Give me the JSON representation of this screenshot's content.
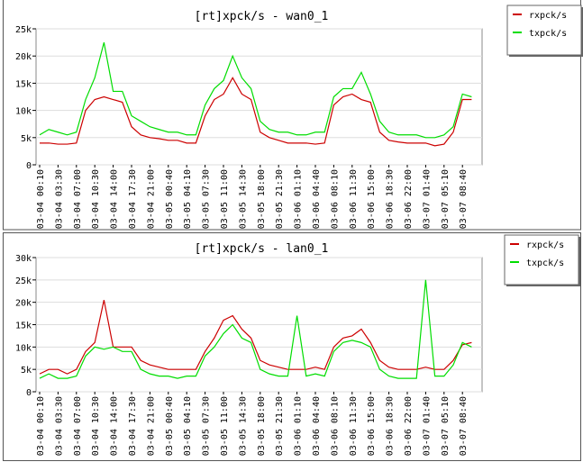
{
  "chart_data": [
    {
      "type": "line",
      "title": "[rt]xpck/s - wan0_1",
      "categories": [
        "03-04 00:10",
        null,
        "03-04 03:30",
        null,
        "03-04 07:00",
        null,
        "03-04 10:30",
        null,
        "03-04 14:00",
        null,
        "03-04 17:30",
        null,
        "03-04 21:00",
        null,
        "03-05 00:40",
        null,
        "03-05 04:10",
        null,
        "03-05 07:30",
        null,
        "03-05 11:00",
        null,
        "03-05 14:30",
        null,
        "03-05 18:00",
        null,
        "03-05 21:30",
        null,
        "03-06 01:10",
        null,
        "03-06 04:40",
        null,
        "03-06 08:10",
        null,
        "03-06 11:30",
        null,
        "03-06 15:00",
        null,
        "03-06 18:30",
        null,
        "03-06 22:00",
        null,
        "03-07 01:40",
        null,
        "03-07 05:10",
        null,
        "03-07 08:40",
        null
      ],
      "series": [
        {
          "name": "rxpck/s",
          "color": "#cc0000",
          "values": [
            4000,
            4000,
            3800,
            3800,
            4000,
            10000,
            12000,
            12500,
            12000,
            11500,
            7000,
            5500,
            5000,
            4800,
            4500,
            4500,
            4000,
            4000,
            9000,
            12000,
            13000,
            16000,
            13000,
            12000,
            6000,
            5000,
            4500,
            4000,
            4000,
            4000,
            3800,
            4000,
            11000,
            12500,
            13000,
            12000,
            11500,
            6000,
            4500,
            4200,
            4000,
            4000,
            4000,
            3500,
            3800,
            6000,
            12000,
            12000
          ]
        },
        {
          "name": "txpck/s",
          "color": "#00dd00",
          "values": [
            5500,
            6500,
            6000,
            5500,
            6000,
            12000,
            16000,
            22500,
            13500,
            13500,
            9000,
            8000,
            7000,
            6500,
            6000,
            6000,
            5500,
            5500,
            11000,
            14000,
            15500,
            20000,
            16000,
            14000,
            8000,
            6500,
            6000,
            6000,
            5500,
            5500,
            6000,
            6000,
            12500,
            14000,
            14000,
            17000,
            13000,
            8000,
            6000,
            5500,
            5500,
            5500,
            5000,
            5000,
            5500,
            7000,
            13000,
            12500
          ]
        }
      ],
      "ylim": [
        0,
        25000
      ],
      "yticks": [
        0,
        {
          "value": 5000,
          "label": "5k"
        },
        {
          "value": 10000,
          "label": "10k"
        },
        {
          "value": 15000,
          "label": "15k"
        },
        {
          "value": 20000,
          "label": "20k"
        },
        {
          "value": 25000,
          "label": "25k"
        }
      ],
      "grid": true,
      "legend": "upper right"
    },
    {
      "type": "line",
      "title": "[rt]xpck/s - lan0_1",
      "categories": [
        "03-04 00:10",
        null,
        "03-04 03:30",
        null,
        "03-04 07:00",
        null,
        "03-04 10:30",
        null,
        "03-04 14:00",
        null,
        "03-04 17:30",
        null,
        "03-04 21:00",
        null,
        "03-05 00:40",
        null,
        "03-05 04:10",
        null,
        "03-05 07:30",
        null,
        "03-05 11:00",
        null,
        "03-05 14:30",
        null,
        "03-05 18:00",
        null,
        "03-05 21:30",
        null,
        "03-06 01:10",
        null,
        "03-06 04:40",
        null,
        "03-06 08:10",
        null,
        "03-06 11:30",
        null,
        "03-06 15:00",
        null,
        "03-06 18:30",
        null,
        "03-06 22:00",
        null,
        "03-07 01:40",
        null,
        "03-07 05:10",
        null,
        "03-07 08:40",
        null
      ],
      "series": [
        {
          "name": "rxpck/s",
          "color": "#cc0000",
          "values": [
            4000,
            5000,
            5000,
            4000,
            5000,
            9000,
            11000,
            20500,
            10000,
            10000,
            10000,
            7000,
            6000,
            5500,
            5000,
            5000,
            5000,
            5000,
            9000,
            12000,
            16000,
            17000,
            14000,
            12000,
            7000,
            6000,
            5500,
            5000,
            5000,
            5000,
            5500,
            5000,
            10000,
            12000,
            12500,
            14000,
            11000,
            7000,
            5500,
            5000,
            5000,
            5000,
            5500,
            5000,
            5000,
            7000,
            10500,
            11000
          ]
        },
        {
          "name": "txpck/s",
          "color": "#00dd00",
          "values": [
            3000,
            4000,
            3000,
            3000,
            3500,
            8000,
            10000,
            9500,
            10000,
            9000,
            9000,
            5000,
            4000,
            3500,
            3500,
            3000,
            3500,
            3500,
            8000,
            10000,
            13000,
            15000,
            12000,
            11000,
            5000,
            4000,
            3500,
            3500,
            17000,
            3500,
            4000,
            3500,
            9000,
            11000,
            11500,
            11000,
            10000,
            5000,
            3500,
            3000,
            3000,
            3000,
            25000,
            3500,
            3500,
            6000,
            11000,
            10000
          ]
        }
      ],
      "ylim": [
        0,
        30000
      ],
      "yticks": [
        0,
        {
          "value": 5000,
          "label": "5k"
        },
        {
          "value": 10000,
          "label": "10k"
        },
        {
          "value": 15000,
          "label": "15k"
        },
        {
          "value": 20000,
          "label": "20k"
        },
        {
          "value": 25000,
          "label": "25k"
        },
        {
          "value": 30000,
          "label": "30k"
        }
      ],
      "grid": true,
      "legend": "upper right"
    }
  ]
}
